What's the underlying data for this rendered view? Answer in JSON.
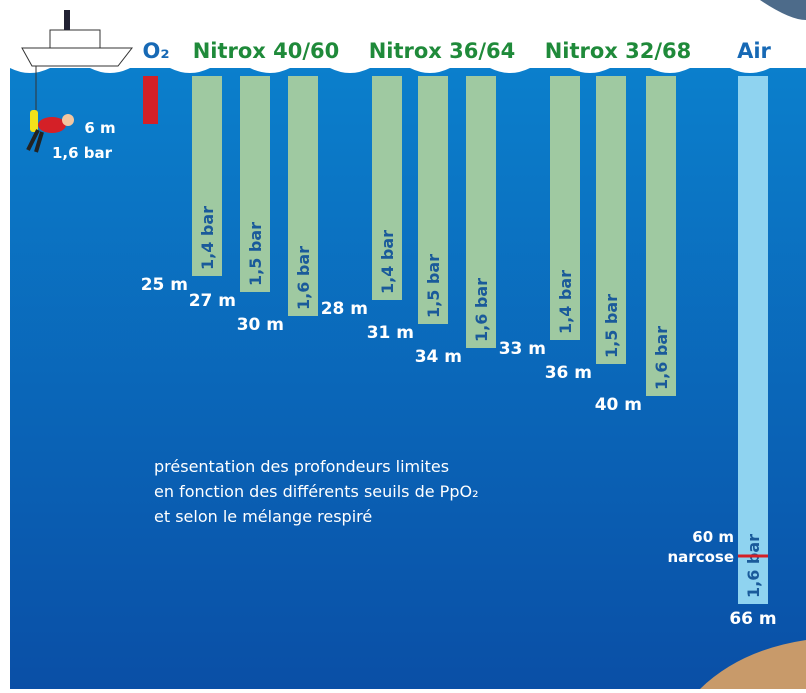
{
  "gases": [
    {
      "name": "O₂",
      "bars": [
        {
          "depth": 6,
          "depth_label": "6 m",
          "ppo2": "1,6 bar"
        }
      ]
    },
    {
      "name": "Nitrox 40/60",
      "bars": [
        {
          "depth": 25,
          "depth_label": "25 m",
          "ppo2": "1,4 bar"
        },
        {
          "depth": 27,
          "depth_label": "27 m",
          "ppo2": "1,5 bar"
        },
        {
          "depth": 30,
          "depth_label": "30 m",
          "ppo2": "1,6 bar"
        }
      ]
    },
    {
      "name": "Nitrox 36/64",
      "bars": [
        {
          "depth": 28,
          "depth_label": "28 m",
          "ppo2": "1,4 bar"
        },
        {
          "depth": 31,
          "depth_label": "31 m",
          "ppo2": "1,5 bar"
        },
        {
          "depth": 34,
          "depth_label": "34 m",
          "ppo2": "1,6 bar"
        }
      ]
    },
    {
      "name": "Nitrox 32/68",
      "bars": [
        {
          "depth": 33,
          "depth_label": "33 m",
          "ppo2": "1,4 bar"
        },
        {
          "depth": 36,
          "depth_label": "36 m",
          "ppo2": "1,5 bar"
        },
        {
          "depth": 40,
          "depth_label": "40 m",
          "ppo2": "1,6 bar"
        }
      ]
    },
    {
      "name": "Air",
      "bars": [
        {
          "depth": 66,
          "depth_label": "66 m",
          "ppo2": "1,6 bar"
        }
      ],
      "narcosis": {
        "depth": 60,
        "depth_label": "60 m",
        "label": "narcose"
      }
    }
  ],
  "caption": [
    "présentation des profondeurs limites",
    "en fonction des différents seuils de PpO₂",
    "et selon le mélange respiré"
  ]
}
